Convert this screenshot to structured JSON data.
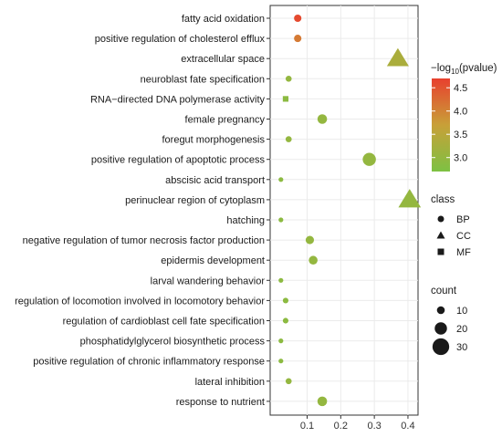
{
  "chart_data": {
    "type": "scatter",
    "categories": [
      "fatty acid oxidation",
      "positive regulation of cholesterol efflux",
      "extracellular space",
      "neuroblast fate specification",
      "RNA−directed DNA polymerase activity",
      "female pregnancy",
      "foregut morphogenesis",
      "positive regulation of apoptotic process",
      "abscisic acid transport",
      "perinuclear region of cytoplasm",
      "hatching",
      "negative regulation of tumor necrosis factor production",
      "epidermis development",
      "larval wandering behavior",
      "regulation of locomotion involved in locomotory behavior",
      "regulation of cardioblast cell fate specification",
      "phosphatidylglycerol biosynthetic process",
      "positive regulation of chronic inflammatory response",
      "lateral inhibition",
      "response to nutrient"
    ],
    "points": [
      {
        "term": "fatty acid oxidation",
        "x": 0.072,
        "class": "BP",
        "count": 9,
        "pvalue": 4.6
      },
      {
        "term": "positive regulation of cholesterol efflux",
        "x": 0.072,
        "class": "BP",
        "count": 9,
        "pvalue": 4.1
      },
      {
        "term": "extracellular space",
        "x": 0.37,
        "class": "CC",
        "count": 30,
        "pvalue": 3.3
      },
      {
        "term": "neuroblast fate specification",
        "x": 0.045,
        "class": "BP",
        "count": 6,
        "pvalue": 3.0
      },
      {
        "term": "RNA−directed DNA polymerase activity",
        "x": 0.036,
        "class": "MF",
        "count": 5,
        "pvalue": 2.9
      },
      {
        "term": "female pregnancy",
        "x": 0.145,
        "class": "BP",
        "count": 14,
        "pvalue": 3.0
      },
      {
        "term": "foregut morphogenesis",
        "x": 0.045,
        "class": "BP",
        "count": 6,
        "pvalue": 3.0
      },
      {
        "term": "positive regulation of apoptotic process",
        "x": 0.285,
        "class": "BP",
        "count": 22,
        "pvalue": 3.0
      },
      {
        "term": "abscisic acid transport",
        "x": 0.022,
        "class": "BP",
        "count": 3,
        "pvalue": 2.9
      },
      {
        "term": "perinuclear region of cytoplasm",
        "x": 0.405,
        "class": "CC",
        "count": 31,
        "pvalue": 3.0
      },
      {
        "term": "hatching",
        "x": 0.022,
        "class": "BP",
        "count": 3,
        "pvalue": 2.9
      },
      {
        "term": "negative regulation of tumor necrosis factor production",
        "x": 0.108,
        "class": "BP",
        "count": 11,
        "pvalue": 3.0
      },
      {
        "term": "epidermis development",
        "x": 0.118,
        "class": "BP",
        "count": 12,
        "pvalue": 3.0
      },
      {
        "term": "larval wandering behavior",
        "x": 0.022,
        "class": "BP",
        "count": 3,
        "pvalue": 2.9
      },
      {
        "term": "regulation of locomotion involved in locomotory behavior",
        "x": 0.036,
        "class": "BP",
        "count": 5,
        "pvalue": 2.9
      },
      {
        "term": "regulation of cardioblast cell fate specification",
        "x": 0.036,
        "class": "BP",
        "count": 5,
        "pvalue": 2.9
      },
      {
        "term": "phosphatidylglycerol biosynthetic process",
        "x": 0.022,
        "class": "BP",
        "count": 3,
        "pvalue": 2.9
      },
      {
        "term": "positive regulation of chronic inflammatory response",
        "x": 0.022,
        "class": "BP",
        "count": 3,
        "pvalue": 2.9
      },
      {
        "term": "lateral inhibition",
        "x": 0.045,
        "class": "BP",
        "count": 6,
        "pvalue": 3.0
      },
      {
        "term": "response to nutrient",
        "x": 0.145,
        "class": "BP",
        "count": 14,
        "pvalue": 3.0
      }
    ],
    "xlim": [
      -0.01,
      0.43
    ],
    "xticks": [
      0.1,
      0.2,
      0.3,
      0.4
    ],
    "xtick_labels": [
      "0.1",
      "0.2",
      "0.3",
      "0.4"
    ],
    "xlabel": "",
    "ylabel": "",
    "title": "",
    "grid": true,
    "legend_placement": "right",
    "color_legend": {
      "title_prefix": "−log",
      "title_sub": "10",
      "title_suffix": "(pvalue)",
      "range": [
        2.7,
        4.7
      ],
      "ticks": [
        4.5,
        4.0,
        3.5,
        3.0
      ],
      "tick_labels": [
        "4.5",
        "4.0",
        "3.5",
        "3.0"
      ],
      "low_color": "#7dc143",
      "mid_color": "#c8a038",
      "high_color": "#e8402e"
    },
    "shape_legend": {
      "title": "class",
      "entries": [
        {
          "label": "BP",
          "shape": "circle"
        },
        {
          "label": "CC",
          "shape": "triangle"
        },
        {
          "label": "MF",
          "shape": "square"
        }
      ]
    },
    "size_legend": {
      "title": "count",
      "entries": [
        {
          "label": "10",
          "value": 10
        },
        {
          "label": "20",
          "value": 20
        },
        {
          "label": "30",
          "value": 30
        }
      ]
    }
  }
}
